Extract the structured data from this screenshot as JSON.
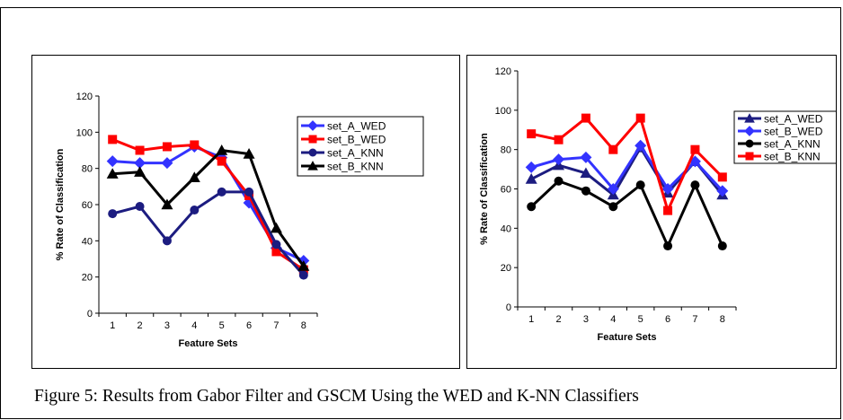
{
  "caption": "Figure 5: Results from Gabor Filter and GSCM Using the WED and K-NN Classifiers",
  "chart_data": [
    {
      "type": "line",
      "xlabel": "Feature Sets",
      "ylabel": "% Rate of Classification",
      "categories": [
        "1",
        "2",
        "3",
        "4",
        "5",
        "6",
        "7",
        "8"
      ],
      "ylim": [
        0,
        120
      ],
      "yticks": [
        "0",
        "20",
        "40",
        "60",
        "80",
        "100",
        "120"
      ],
      "grid": false,
      "legend_position": "right",
      "series": [
        {
          "name": "set_A_WED",
          "color": "#3333ff",
          "marker": "diamond",
          "values": [
            84,
            83,
            83,
            92,
            86,
            61,
            36,
            29
          ]
        },
        {
          "name": "set_B_WED",
          "color": "#ff0000",
          "marker": "square",
          "values": [
            96,
            90,
            92,
            93,
            84,
            65,
            34,
            24
          ]
        },
        {
          "name": "set_A_KNN",
          "color": "#1c1c80",
          "marker": "circle",
          "values": [
            55,
            59,
            40,
            57,
            67,
            67,
            38,
            21
          ]
        },
        {
          "name": "set_B_KNN",
          "color": "#000000",
          "marker": "triangle",
          "values": [
            77,
            78,
            60,
            75,
            90,
            88,
            47,
            26
          ]
        }
      ]
    },
    {
      "type": "line",
      "xlabel": "Feature Sets",
      "ylabel": "% Rate of Classification",
      "categories": [
        "1",
        "2",
        "3",
        "4",
        "5",
        "6",
        "7",
        "8"
      ],
      "ylim": [
        0,
        120
      ],
      "yticks": [
        "0",
        "20",
        "40",
        "60",
        "80",
        "100",
        "120"
      ],
      "grid": false,
      "legend_position": "right",
      "series": [
        {
          "name": "set_A_WED",
          "color": "#1c1c80",
          "marker": "triangle",
          "values": [
            65,
            72,
            68,
            57,
            81,
            58,
            74,
            57
          ]
        },
        {
          "name": "set_B_WED",
          "color": "#3333ff",
          "marker": "diamond",
          "values": [
            71,
            75,
            76,
            60,
            82,
            60,
            74,
            59
          ]
        },
        {
          "name": "set_A_KNN",
          "color": "#000000",
          "marker": "circle",
          "values": [
            51,
            64,
            59,
            51,
            62,
            31,
            62,
            31
          ]
        },
        {
          "name": "set_B_KNN",
          "color": "#ff0000",
          "marker": "square",
          "values": [
            88,
            85,
            96,
            80,
            96,
            49,
            80,
            66
          ]
        }
      ]
    }
  ]
}
